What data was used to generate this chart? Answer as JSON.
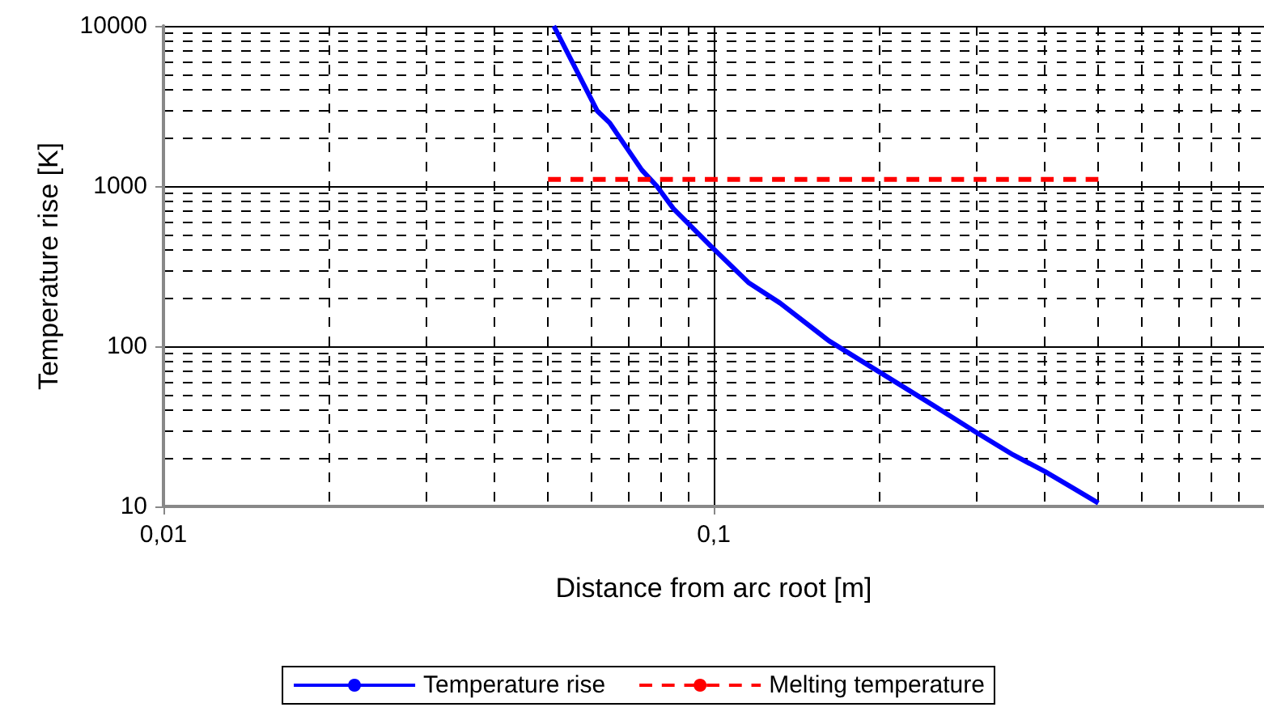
{
  "chart_data": {
    "type": "line",
    "xlabel": "Distance from arc root [m]",
    "ylabel": "Temperature rise [K]",
    "log": "xy",
    "xlim": [
      0.01,
      1
    ],
    "ylim": [
      10,
      10000
    ],
    "xticks": [
      {
        "value": 0.01,
        "label": "0,01"
      },
      {
        "value": 0.1,
        "label": "0,1"
      }
    ],
    "yticks": [
      10,
      100,
      1000,
      10000
    ],
    "grid": true,
    "legend": "bottom",
    "marker": "none",
    "series": [
      {
        "name": "Temperature rise",
        "color": "#0000ff",
        "line_style": "solid",
        "x": [
          0.0512,
          0.0614,
          0.0647,
          0.074,
          0.0788,
          0.0846,
          0.099,
          0.1156,
          0.132,
          0.162,
          0.2,
          0.25,
          0.3,
          0.35,
          0.4,
          0.45,
          0.5
        ],
        "values": [
          10000,
          2950,
          2480,
          1260,
          1000,
          718,
          419,
          250,
          186,
          108,
          69,
          43,
          29,
          21,
          16.5,
          13,
          10.5
        ]
      },
      {
        "name": "Melting temperature",
        "color": "#ff0000",
        "line_style": "dashed",
        "x": [
          0.05,
          0.5
        ],
        "values": [
          1100,
          1100
        ]
      }
    ]
  }
}
